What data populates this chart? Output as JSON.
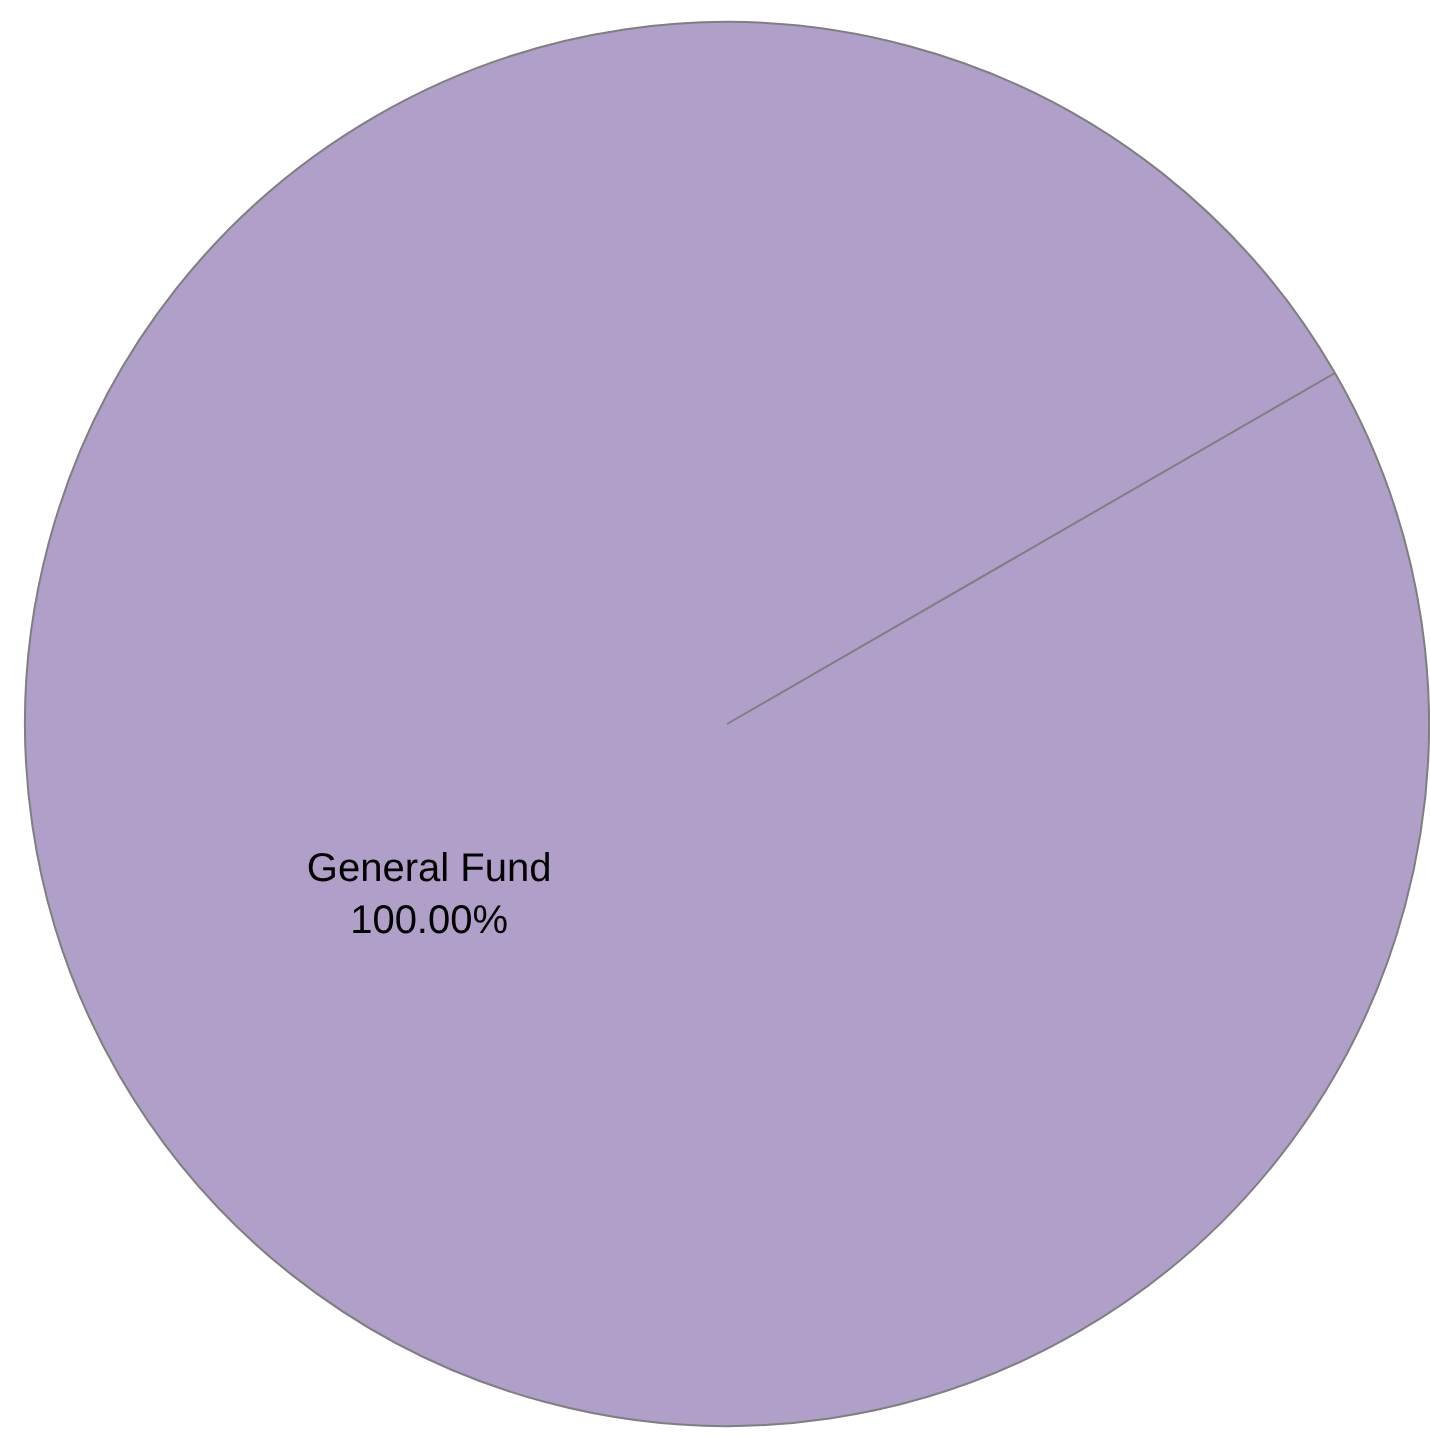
{
  "chart_data": {
    "type": "pie",
    "categories": [
      "General Fund"
    ],
    "values": [
      100
    ],
    "colors": [
      "#b09fc8"
    ],
    "value_labels": [
      "100.00%"
    ]
  }
}
